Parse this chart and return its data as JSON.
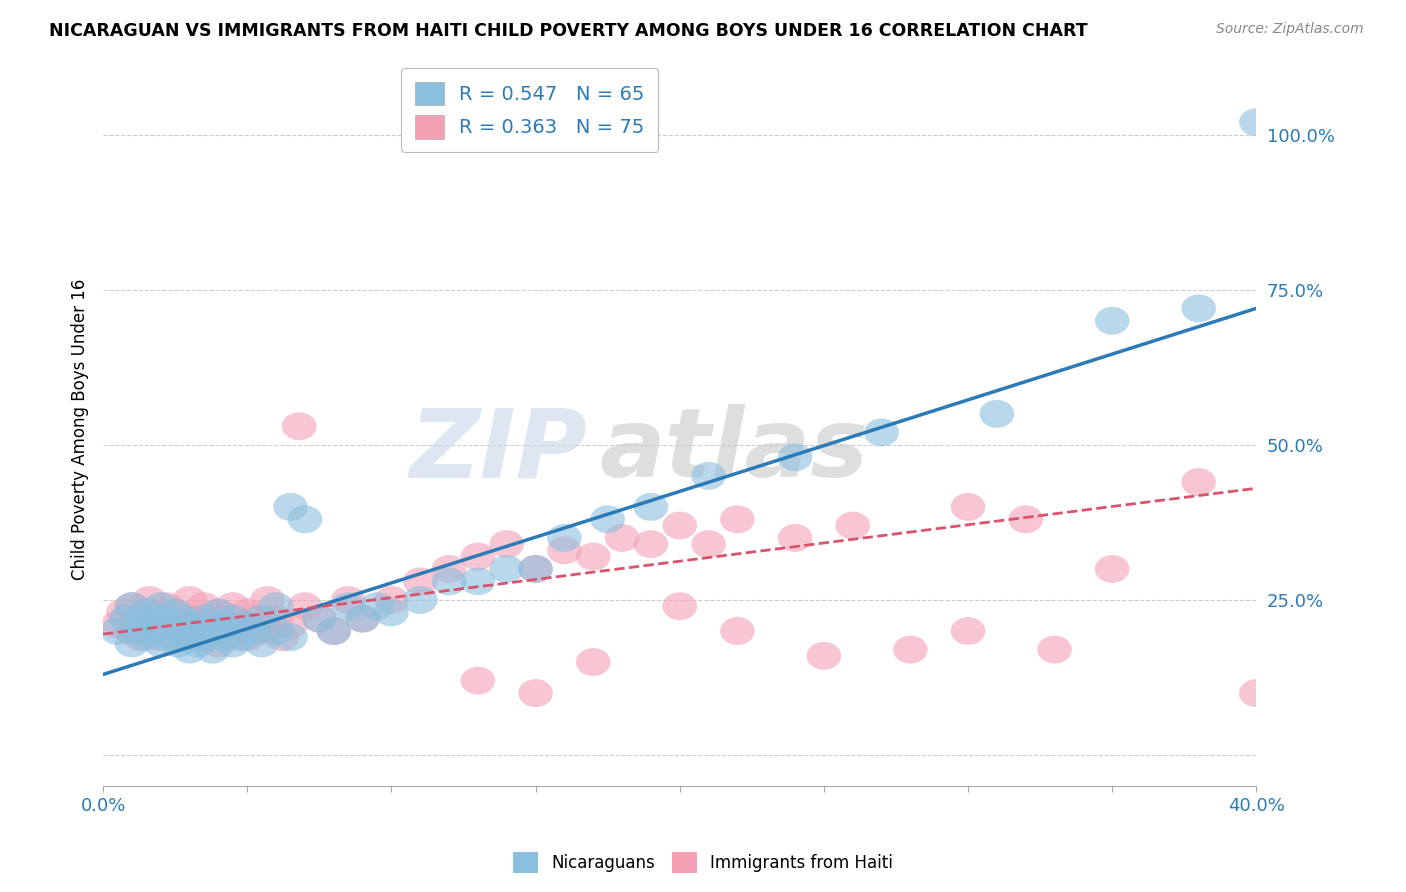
{
  "title": "NICARAGUAN VS IMMIGRANTS FROM HAITI CHILD POVERTY AMONG BOYS UNDER 16 CORRELATION CHART",
  "source": "Source: ZipAtlas.com",
  "ylabel": "Child Poverty Among Boys Under 16",
  "xlim": [
    0.0,
    0.4
  ],
  "ylim": [
    -0.05,
    1.1
  ],
  "yticks": [
    0.0,
    0.25,
    0.5,
    0.75,
    1.0
  ],
  "ytick_labels": [
    "",
    "25.0%",
    "50.0%",
    "75.0%",
    "100.0%"
  ],
  "xticks": [
    0.0,
    0.05,
    0.1,
    0.15,
    0.2,
    0.25,
    0.3,
    0.35,
    0.4
  ],
  "xtick_labels": [
    "0.0%",
    "",
    "",
    "",
    "",
    "",
    "",
    "",
    "40.0%"
  ],
  "blue_color": "#8bbfde",
  "pink_color": "#f4a0b5",
  "blue_line_color": "#2c7bb6",
  "pink_line_color": "#d9536e",
  "watermark_1": "ZIP",
  "watermark_2": "atlas",
  "legend_blue_label": "R = 0.547   N = 65",
  "legend_pink_label": "R = 0.363   N = 75",
  "blue_line_x0": 0.0,
  "blue_line_y0": 0.13,
  "blue_line_x1": 0.4,
  "blue_line_y1": 0.72,
  "pink_line_x0": 0.0,
  "pink_line_y0": 0.195,
  "pink_line_x1": 0.4,
  "pink_line_y1": 0.43,
  "background_color": "#ffffff",
  "grid_color": "#cccccc",
  "blue_scatter_x": [
    0.005,
    0.008,
    0.01,
    0.01,
    0.012,
    0.013,
    0.015,
    0.015,
    0.017,
    0.018,
    0.02,
    0.02,
    0.02,
    0.022,
    0.023,
    0.025,
    0.025,
    0.026,
    0.027,
    0.028,
    0.03,
    0.03,
    0.032,
    0.033,
    0.035,
    0.035,
    0.036,
    0.038,
    0.04,
    0.04,
    0.042,
    0.043,
    0.045,
    0.045,
    0.048,
    0.05,
    0.052,
    0.055,
    0.055,
    0.06,
    0.06,
    0.065,
    0.065,
    0.07,
    0.075,
    0.08,
    0.085,
    0.09,
    0.095,
    0.1,
    0.11,
    0.12,
    0.13,
    0.14,
    0.15,
    0.16,
    0.175,
    0.19,
    0.21,
    0.24,
    0.27,
    0.31,
    0.35,
    0.38,
    0.4
  ],
  "blue_scatter_y": [
    0.2,
    0.22,
    0.18,
    0.24,
    0.2,
    0.22,
    0.19,
    0.23,
    0.21,
    0.2,
    0.18,
    0.22,
    0.24,
    0.19,
    0.21,
    0.2,
    0.23,
    0.18,
    0.22,
    0.19,
    0.17,
    0.21,
    0.2,
    0.18,
    0.22,
    0.19,
    0.21,
    0.17,
    0.2,
    0.23,
    0.19,
    0.21,
    0.18,
    0.22,
    0.19,
    0.21,
    0.2,
    0.18,
    0.22,
    0.2,
    0.24,
    0.19,
    0.4,
    0.38,
    0.22,
    0.2,
    0.24,
    0.22,
    0.24,
    0.23,
    0.25,
    0.28,
    0.28,
    0.3,
    0.3,
    0.35,
    0.38,
    0.4,
    0.45,
    0.48,
    0.52,
    0.55,
    0.7,
    0.72,
    1.02
  ],
  "pink_scatter_x": [
    0.005,
    0.007,
    0.01,
    0.01,
    0.012,
    0.013,
    0.015,
    0.015,
    0.016,
    0.018,
    0.02,
    0.02,
    0.022,
    0.023,
    0.025,
    0.025,
    0.026,
    0.028,
    0.03,
    0.03,
    0.032,
    0.033,
    0.035,
    0.035,
    0.037,
    0.038,
    0.04,
    0.04,
    0.042,
    0.045,
    0.045,
    0.048,
    0.05,
    0.05,
    0.053,
    0.055,
    0.057,
    0.06,
    0.062,
    0.065,
    0.068,
    0.07,
    0.075,
    0.08,
    0.085,
    0.09,
    0.1,
    0.11,
    0.12,
    0.13,
    0.14,
    0.15,
    0.16,
    0.17,
    0.18,
    0.19,
    0.2,
    0.21,
    0.22,
    0.24,
    0.26,
    0.3,
    0.32,
    0.35,
    0.38,
    0.4,
    0.2,
    0.22,
    0.25,
    0.28,
    0.3,
    0.33,
    0.13,
    0.15,
    0.17
  ],
  "pink_scatter_y": [
    0.21,
    0.23,
    0.2,
    0.24,
    0.22,
    0.19,
    0.23,
    0.2,
    0.25,
    0.21,
    0.22,
    0.19,
    0.24,
    0.21,
    0.2,
    0.23,
    0.19,
    0.22,
    0.21,
    0.25,
    0.2,
    0.22,
    0.19,
    0.24,
    0.21,
    0.2,
    0.23,
    0.18,
    0.22,
    0.2,
    0.24,
    0.21,
    0.19,
    0.23,
    0.22,
    0.2,
    0.25,
    0.22,
    0.19,
    0.21,
    0.53,
    0.24,
    0.22,
    0.2,
    0.25,
    0.22,
    0.25,
    0.28,
    0.3,
    0.32,
    0.34,
    0.3,
    0.33,
    0.32,
    0.35,
    0.34,
    0.37,
    0.34,
    0.38,
    0.35,
    0.37,
    0.4,
    0.38,
    0.3,
    0.44,
    0.1,
    0.24,
    0.2,
    0.16,
    0.17,
    0.2,
    0.17,
    0.12,
    0.1,
    0.15
  ]
}
